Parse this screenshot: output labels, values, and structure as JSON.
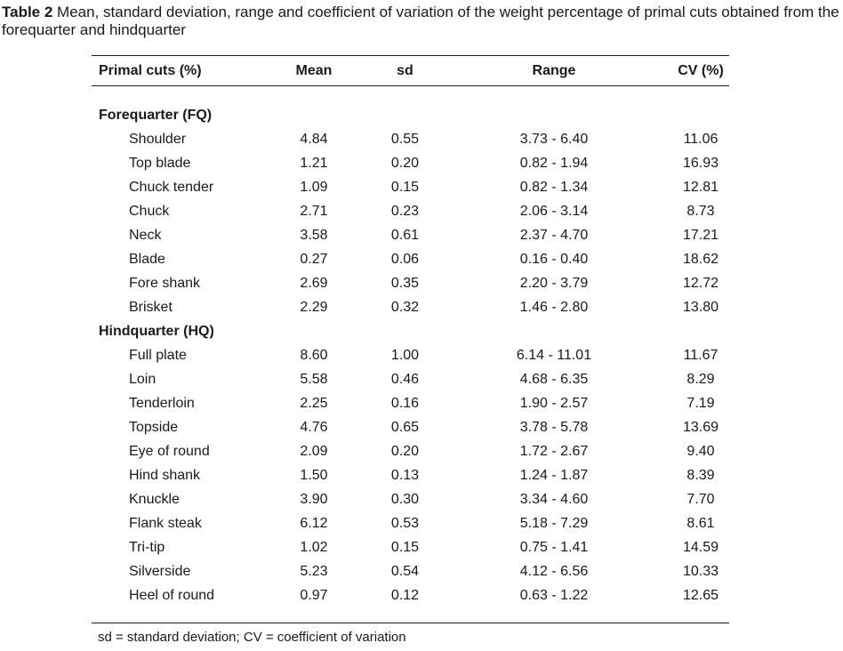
{
  "caption": {
    "label": "Table 2",
    "text": " Mean, standard deviation, range and coefficient of variation of the weight percentage of primal cuts obtained from the forequarter and hindquarter"
  },
  "table": {
    "headers": {
      "name": "Primal cuts (%)",
      "mean": "Mean",
      "sd": "sd",
      "range": "Range",
      "cv": "CV (%)"
    },
    "groups": [
      {
        "title": "Forequarter (FQ)",
        "rows": [
          {
            "name": "Shoulder",
            "mean": "4.84",
            "sd": "0.55",
            "range": "3.73 - 6.40",
            "cv": "11.06"
          },
          {
            "name": "Top blade",
            "mean": "1.21",
            "sd": "0.20",
            "range": "0.82 - 1.94",
            "cv": "16.93"
          },
          {
            "name": "Chuck tender",
            "mean": "1.09",
            "sd": "0.15",
            "range": "0.82 - 1.34",
            "cv": "12.81"
          },
          {
            "name": "Chuck",
            "mean": "2.71",
            "sd": "0.23",
            "range": "2.06 - 3.14",
            "cv": "8.73"
          },
          {
            "name": "Neck",
            "mean": "3.58",
            "sd": "0.61",
            "range": "2.37 - 4.70",
            "cv": "17.21"
          },
          {
            "name": "Blade",
            "mean": "0.27",
            "sd": "0.06",
            "range": "0.16 - 0.40",
            "cv": "18.62"
          },
          {
            "name": "Fore shank",
            "mean": "2.69",
            "sd": "0.35",
            "range": "2.20 - 3.79",
            "cv": "12.72"
          },
          {
            "name": "Brisket",
            "mean": "2.29",
            "sd": "0.32",
            "range": "1.46 - 2.80",
            "cv": "13.80"
          }
        ]
      },
      {
        "title": "Hindquarter (HQ)",
        "rows": [
          {
            "name": "Full plate",
            "mean": "8.60",
            "sd": "1.00",
            "range": "6.14 - 11.01",
            "cv": "11.67"
          },
          {
            "name": "Loin",
            "mean": "5.58",
            "sd": "0.46",
            "range": "4.68 - 6.35",
            "cv": "8.29"
          },
          {
            "name": "Tenderloin",
            "mean": "2.25",
            "sd": "0.16",
            "range": "1.90 - 2.57",
            "cv": "7.19"
          },
          {
            "name": "Topside",
            "mean": "4.76",
            "sd": "0.65",
            "range": "3.78 - 5.78",
            "cv": "13.69"
          },
          {
            "name": "Eye of round",
            "mean": "2.09",
            "sd": "0.20",
            "range": "1.72 - 2.67",
            "cv": "9.40"
          },
          {
            "name": "Hind shank",
            "mean": "1.50",
            "sd": "0.13",
            "range": "1.24 - 1.87",
            "cv": "8.39"
          },
          {
            "name": "Knuckle",
            "mean": "3.90",
            "sd": "0.30",
            "range": "3.34 - 4.60",
            "cv": "7.70"
          },
          {
            "name": "Flank steak",
            "mean": "6.12",
            "sd": "0.53",
            "range": "5.18 - 7.29",
            "cv": "8.61"
          },
          {
            "name": "Tri-tip",
            "mean": "1.02",
            "sd": "0.15",
            "range": "0.75 - 1.41",
            "cv": "14.59"
          },
          {
            "name": "Silverside",
            "mean": "5.23",
            "sd": "0.54",
            "range": "4.12 - 6.56",
            "cv": "10.33"
          },
          {
            "name": "Heel of round",
            "mean": "0.97",
            "sd": "0.12",
            "range": "0.63 - 1.22",
            "cv": "12.65"
          }
        ]
      }
    ]
  },
  "footnote": "sd = standard deviation; CV = coefficient of variation"
}
